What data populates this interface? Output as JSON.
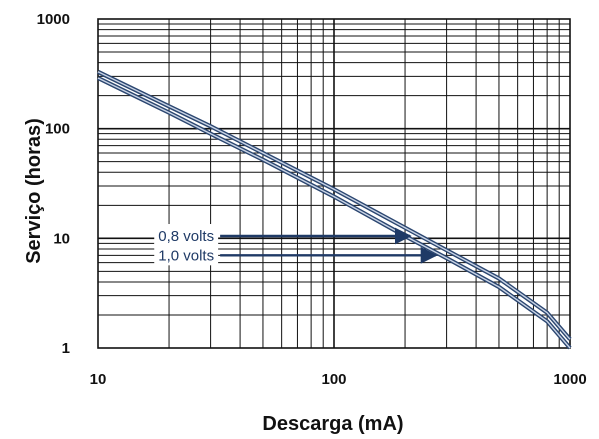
{
  "chart_data": {
    "type": "line",
    "xlabel": "Descarga (mA)",
    "ylabel": "Serviço (horas)",
    "xscale": "log",
    "yscale": "log",
    "xlim": [
      10,
      1000
    ],
    "ylim": [
      1,
      1000
    ],
    "grid": true,
    "x_ticks": [
      {
        "value": 10,
        "label": "10"
      },
      {
        "value": 100,
        "label": "100"
      },
      {
        "value": 1000,
        "label": "1000"
      }
    ],
    "y_ticks": [
      {
        "value": 1,
        "label": "1"
      },
      {
        "value": 10,
        "label": "10"
      },
      {
        "value": 100,
        "label": "100"
      },
      {
        "value": 1000,
        "label": "1000"
      }
    ],
    "series": [
      {
        "name": "0,8 volts",
        "x": [
          10,
          20,
          30,
          50,
          100,
          200,
          300,
          500,
          800,
          1000
        ],
        "y": [
          330,
          160,
          105,
          60,
          28,
          12.5,
          7.8,
          4.3,
          2.1,
          1.2
        ]
      },
      {
        "name": "1,0 volts",
        "x": [
          10,
          20,
          30,
          50,
          100,
          200,
          300,
          500,
          800,
          1000
        ],
        "y": [
          290,
          140,
          90,
          52,
          24,
          10.5,
          6.6,
          3.6,
          1.75,
          1.0
        ]
      }
    ],
    "annotations": [
      {
        "text": "0,8 volts",
        "series": 0,
        "from_x": 18,
        "to_x": 210,
        "y": 10.5
      },
      {
        "text": "1,0 volts",
        "series": 1,
        "from_x": 18,
        "to_x": 270,
        "y": 7.0
      }
    ],
    "colors": {
      "curve": "#2b4670",
      "grid": "#111111",
      "annotation": "#1f3a66"
    }
  }
}
